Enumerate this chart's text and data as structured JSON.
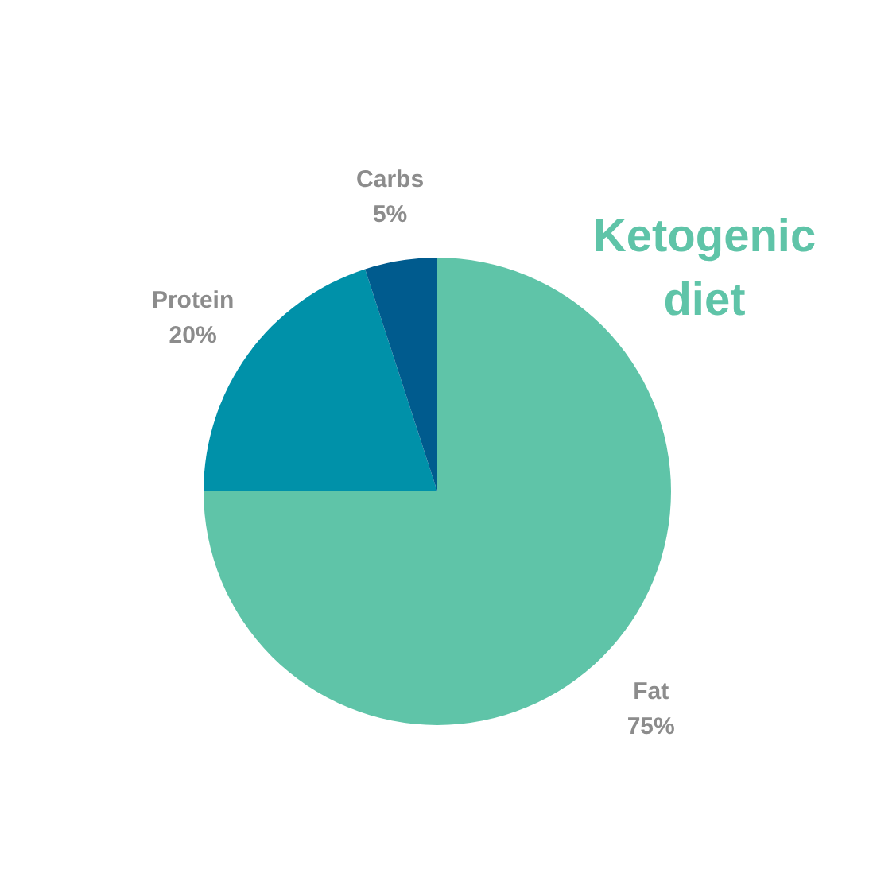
{
  "chart_data": {
    "type": "pie",
    "title": "Ketogenic diet",
    "categories": [
      "Fat",
      "Protein",
      "Carbs"
    ],
    "values": [
      75,
      20,
      5
    ],
    "colors": [
      "#5fc4a8",
      "#0091a9",
      "#005b8e"
    ],
    "value_labels": [
      "75%",
      "20%",
      "5%"
    ]
  }
}
